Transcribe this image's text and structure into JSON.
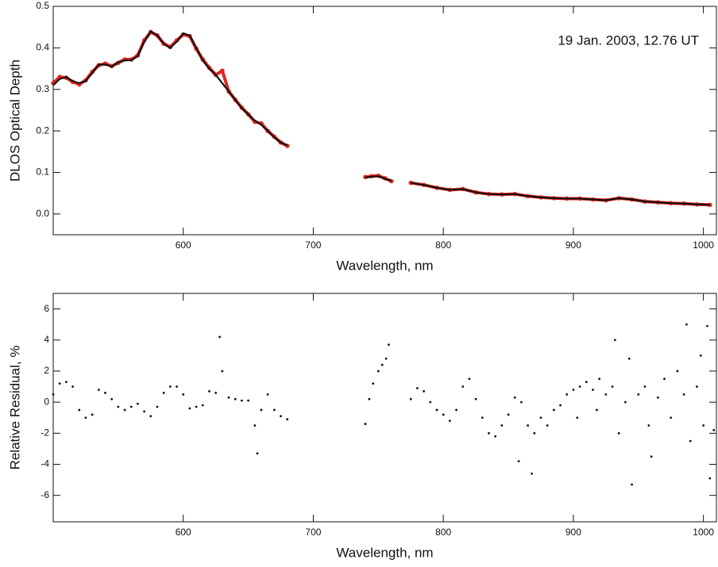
{
  "chart_data": [
    {
      "type": "line",
      "ylabel": "DLOS Optical Depth",
      "xlabel": "Wavelength, nm",
      "annotation": "19 Jan. 2003, 12.76 UT",
      "xlim": [
        500,
        1010
      ],
      "xticks": [
        600,
        700,
        800,
        900,
        1000
      ],
      "ylim": [
        -0.05,
        0.5
      ],
      "yticks": [
        {
          "value": 0,
          "label": "0.0"
        },
        0.1,
        0.2,
        0.3,
        0.4,
        0.5
      ],
      "x": [
        500,
        505,
        510,
        515,
        520,
        525,
        530,
        535,
        540,
        545,
        550,
        555,
        560,
        565,
        570,
        575,
        580,
        585,
        590,
        595,
        600,
        605,
        610,
        615,
        620,
        625,
        630,
        635,
        640,
        645,
        650,
        655,
        660,
        665,
        670,
        675,
        680,
        700,
        740,
        745,
        750,
        755,
        760,
        767,
        775,
        785,
        795,
        805,
        815,
        825,
        835,
        845,
        855,
        865,
        875,
        885,
        895,
        905,
        915,
        925,
        935,
        945,
        955,
        965,
        975,
        985,
        995,
        1005
      ],
      "series": [
        {
          "color": "#e0261f",
          "marker": "dot",
          "values": [
            0.315,
            0.33,
            0.328,
            0.318,
            0.312,
            0.322,
            0.342,
            0.358,
            0.362,
            0.356,
            0.364,
            0.372,
            0.372,
            0.382,
            0.418,
            0.438,
            0.43,
            0.41,
            0.402,
            0.418,
            0.432,
            0.428,
            0.398,
            0.372,
            0.352,
            0.335,
            0.345,
            0.295,
            0.275,
            0.256,
            0.24,
            0.222,
            0.218,
            0.2,
            0.186,
            0.172,
            0.164,
            null,
            0.089,
            0.091,
            0.092,
            0.086,
            0.079,
            null,
            0.075,
            0.07,
            0.063,
            0.058,
            0.06,
            0.052,
            0.048,
            0.047,
            0.048,
            0.043,
            0.04,
            0.038,
            0.037,
            0.037,
            0.035,
            0.033,
            0.038,
            0.035,
            0.03,
            0.028,
            0.026,
            0.025,
            0.023,
            0.022
          ]
        },
        {
          "color": "#111111",
          "values": [
            0.31,
            0.325,
            0.33,
            0.32,
            0.315,
            0.32,
            0.34,
            0.36,
            0.36,
            0.355,
            0.365,
            0.37,
            0.37,
            0.38,
            0.415,
            0.44,
            0.43,
            0.41,
            0.4,
            0.415,
            0.435,
            0.43,
            0.4,
            0.37,
            0.35,
            0.335,
            0.315,
            0.295,
            0.275,
            0.255,
            0.24,
            0.225,
            0.215,
            0.2,
            0.185,
            0.172,
            0.165,
            null,
            0.088,
            0.09,
            0.091,
            0.085,
            0.08,
            null,
            0.075,
            0.07,
            0.063,
            0.058,
            0.06,
            0.052,
            0.048,
            0.047,
            0.048,
            0.043,
            0.04,
            0.038,
            0.037,
            0.037,
            0.035,
            0.033,
            0.038,
            0.035,
            0.03,
            0.028,
            0.026,
            0.025,
            0.023,
            0.022
          ]
        }
      ]
    },
    {
      "type": "scatter",
      "ylabel": "Relative Residual, %",
      "xlabel": "Wavelength, nm",
      "xlim": [
        500,
        1010
      ],
      "xticks": [
        600,
        700,
        800,
        900,
        1000
      ],
      "ylim": [
        -7.7,
        7
      ],
      "yticks": [
        -6,
        -4,
        -2,
        0,
        2,
        4,
        6
      ],
      "color": "#111111",
      "x": [
        500,
        505,
        510,
        515,
        520,
        525,
        530,
        535,
        540,
        545,
        550,
        555,
        560,
        565,
        570,
        575,
        580,
        585,
        590,
        595,
        600,
        605,
        610,
        615,
        620,
        625,
        628,
        630,
        635,
        640,
        645,
        650,
        655,
        657,
        660,
        665,
        670,
        675,
        680,
        740,
        743,
        746,
        750,
        753,
        756,
        758,
        775,
        780,
        785,
        790,
        795,
        800,
        805,
        810,
        815,
        820,
        825,
        830,
        835,
        840,
        845,
        850,
        855,
        858,
        860,
        865,
        868,
        870,
        875,
        880,
        885,
        890,
        895,
        900,
        903,
        905,
        910,
        915,
        918,
        920,
        925,
        930,
        932,
        935,
        940,
        943,
        945,
        950,
        955,
        958,
        960,
        965,
        970,
        975,
        980,
        985,
        987,
        990,
        995,
        998,
        1000,
        1003,
        1005,
        1008
      ],
      "values": [
        0.5,
        1.2,
        1.3,
        1.0,
        -0.5,
        -1.0,
        -0.8,
        0.8,
        0.6,
        0.2,
        -0.3,
        -0.5,
        -0.3,
        -0.1,
        -0.6,
        -0.9,
        -0.3,
        0.6,
        1.0,
        1.0,
        0.5,
        -0.4,
        -0.3,
        -0.2,
        0.7,
        0.6,
        4.2,
        2.0,
        0.3,
        0.2,
        0.1,
        0.1,
        -1.5,
        -3.3,
        -0.5,
        0.5,
        -0.5,
        -0.9,
        -1.1,
        -1.4,
        0.2,
        1.2,
        2.0,
        2.4,
        2.8,
        3.7,
        0.2,
        0.9,
        0.7,
        0.0,
        -0.5,
        -0.8,
        -1.2,
        -0.5,
        1.0,
        1.5,
        0.2,
        -1.0,
        -2.0,
        -2.2,
        -1.5,
        -0.8,
        0.3,
        -3.8,
        0.0,
        -1.5,
        -4.6,
        -2.0,
        -1.0,
        -1.5,
        -0.5,
        -0.2,
        0.5,
        0.8,
        -1.0,
        1.0,
        1.3,
        0.8,
        -0.5,
        1.5,
        0.5,
        1.0,
        4.0,
        -2.0,
        0.0,
        2.8,
        -5.3,
        0.5,
        1.0,
        -1.5,
        -3.5,
        0.3,
        1.5,
        -1.0,
        2.0,
        0.5,
        5.0,
        -2.5,
        1.0,
        3.0,
        -1.5,
        4.9,
        -4.9,
        -1.8
      ]
    }
  ]
}
